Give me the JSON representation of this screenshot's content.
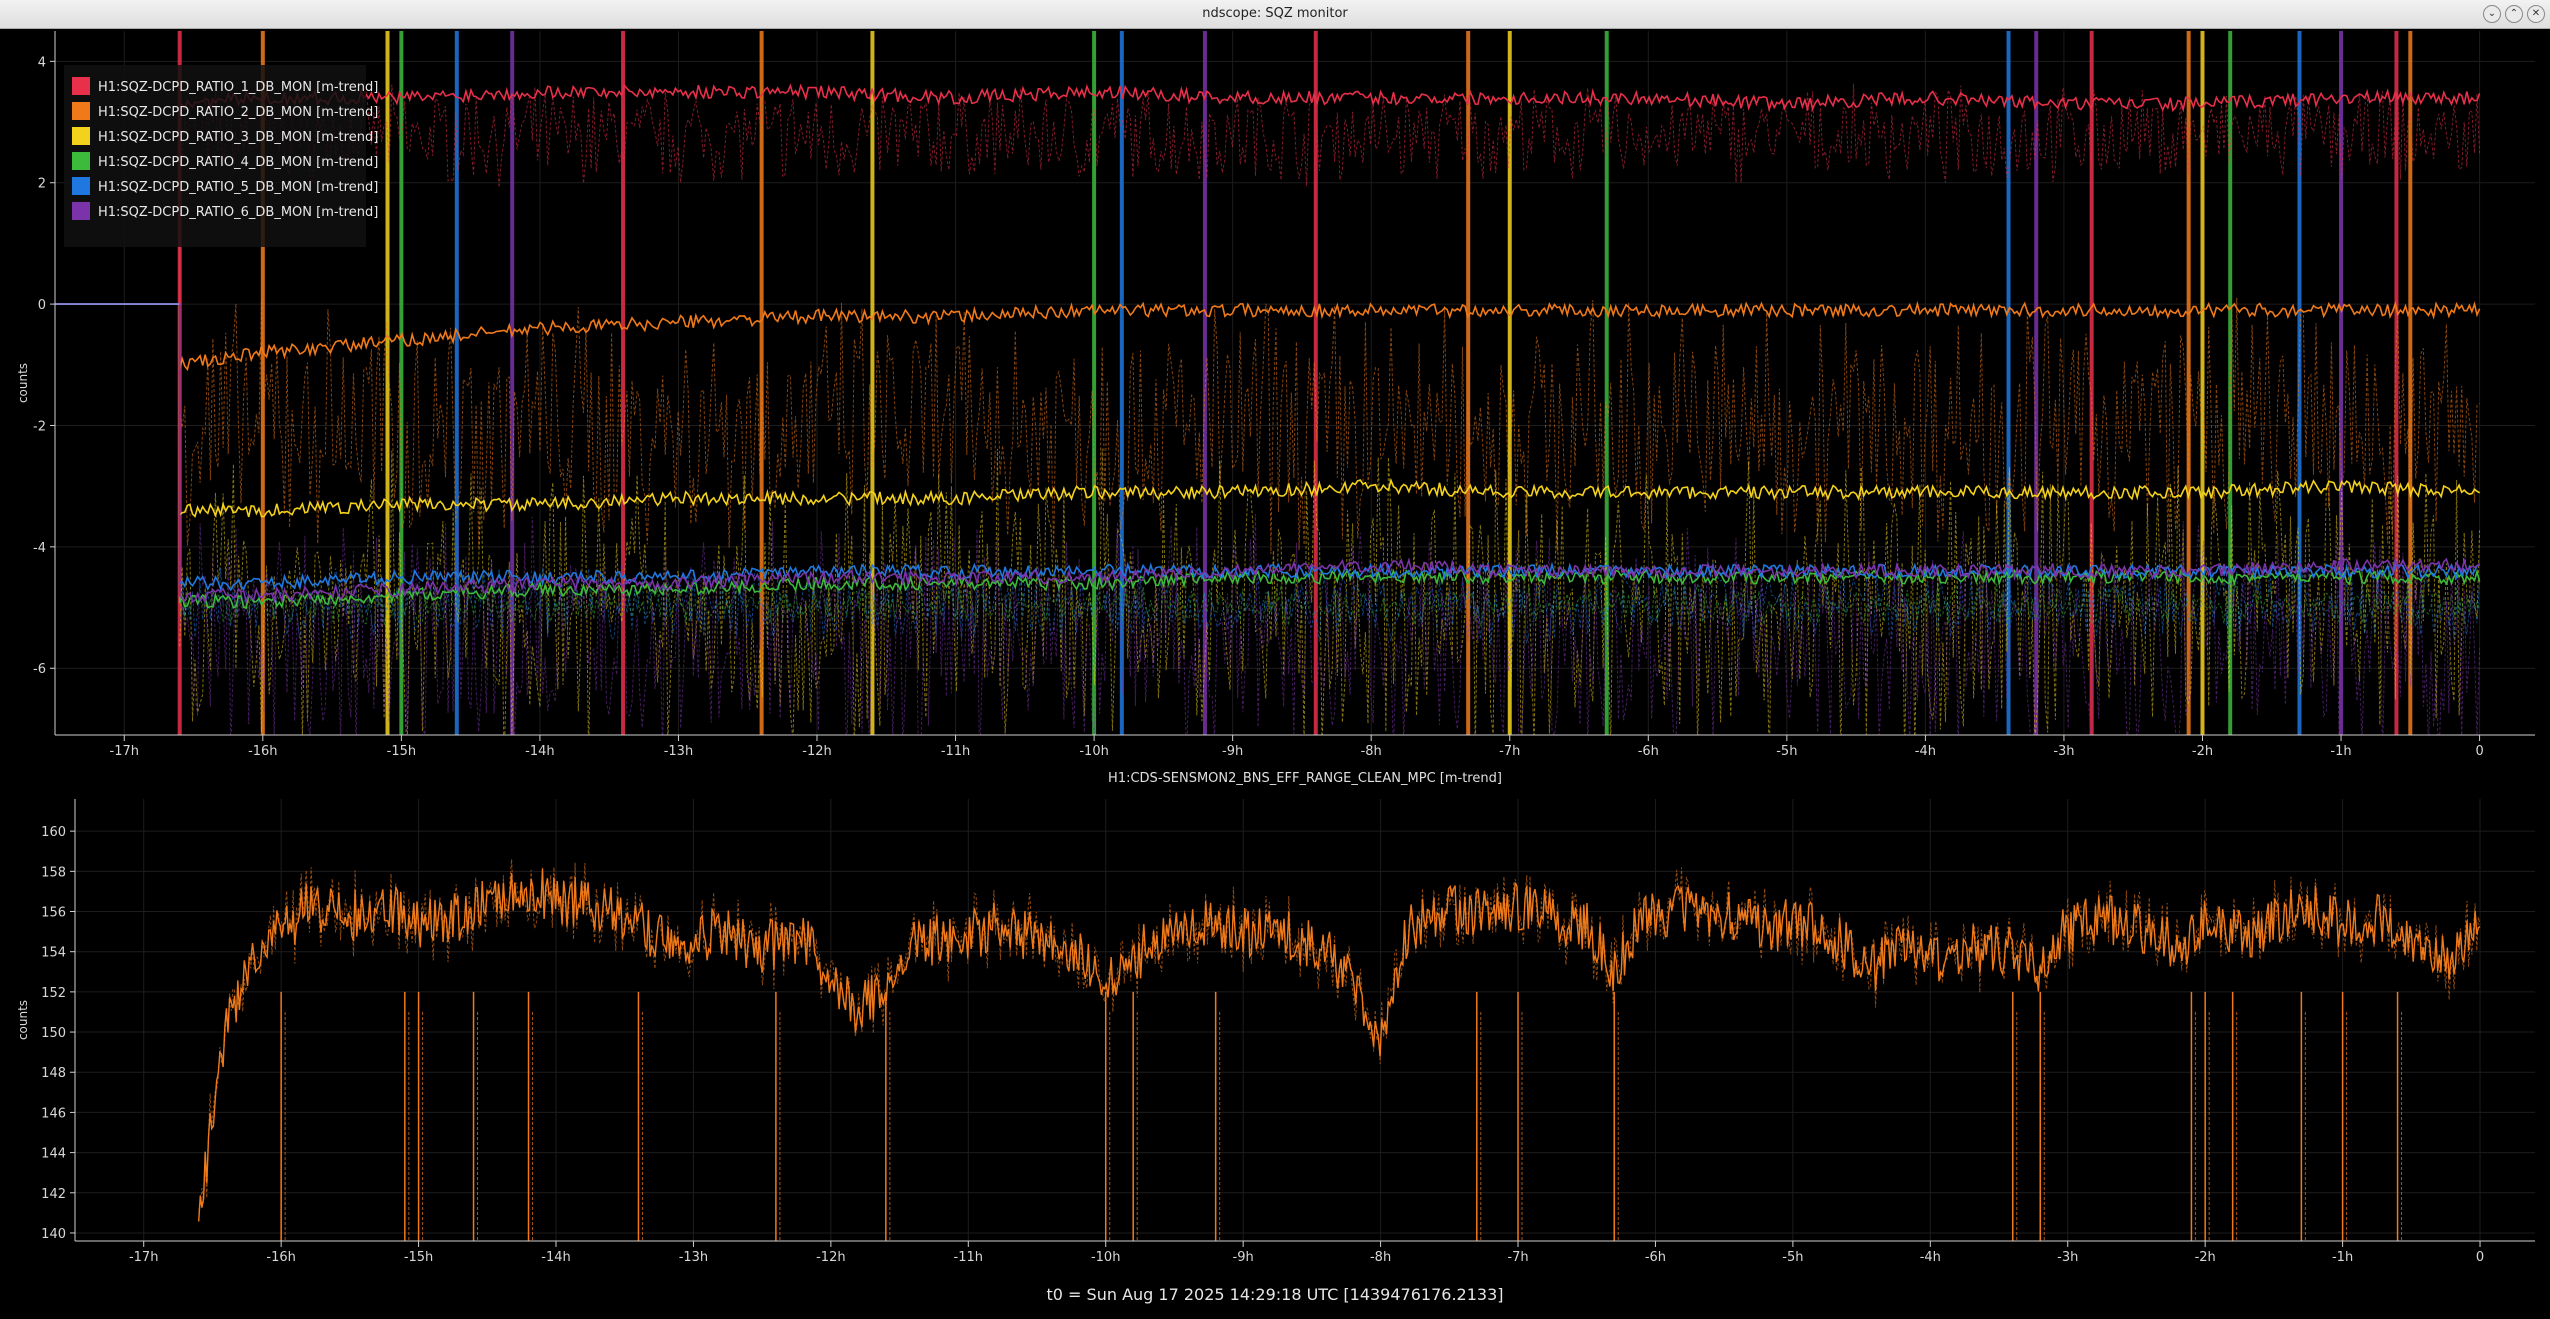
{
  "window": {
    "title": "ndscope: SQZ monitor",
    "buttons": [
      "minimize-icon",
      "maximize-icon",
      "close-icon"
    ]
  },
  "footer": {
    "t0_label": "t0 = Sun Aug 17 2025 14:29:18 UTC [1439476176.2133]"
  },
  "chart_data": [
    {
      "type": "line",
      "title": "",
      "ylabel": "counts",
      "xlabel": "",
      "x_unit": "hours relative to t0",
      "xlim": [
        -17.5,
        0.4
      ],
      "ylim": [
        -7.1,
        4.5
      ],
      "x_ticks": [
        -17,
        -16,
        -15,
        -14,
        -13,
        -12,
        -11,
        -10,
        -9,
        -8,
        -7,
        -6,
        -5,
        -4,
        -3,
        -2,
        -1,
        0
      ],
      "x_tick_labels": [
        "-17h",
        "-16h",
        "-15h",
        "-14h",
        "-13h",
        "-12h",
        "-11h",
        "-10h",
        "-9h",
        "-8h",
        "-7h",
        "-6h",
        "-5h",
        "-4h",
        "-3h",
        "-2h",
        "-1h",
        "0"
      ],
      "y_ticks": [
        -6,
        -4,
        -2,
        0,
        2,
        4
      ],
      "y_tick_labels": [
        "-6",
        "-4",
        "-2",
        "0",
        "2",
        "4"
      ],
      "grid": true,
      "legend_position": "top-left",
      "pre_data_flat_value": 0,
      "data_start": -16.6,
      "series": [
        {
          "name": "H1:SQZ-DCPD_RATIO_1_DB_MON [m-trend]",
          "color": "#e8304a",
          "x": [
            -16.6,
            -16,
            -15,
            -14,
            -13,
            -12,
            -11,
            -10,
            -9,
            -8,
            -7,
            -6,
            -5,
            -4,
            -3,
            -2,
            -1,
            0
          ],
          "mean": [
            3.3,
            3.4,
            3.4,
            3.5,
            3.5,
            3.5,
            3.4,
            3.5,
            3.4,
            3.4,
            3.4,
            3.4,
            3.3,
            3.4,
            3.3,
            3.3,
            3.4,
            3.4
          ],
          "band": [
            2.2,
            4.5
          ]
        },
        {
          "name": "H1:SQZ-DCPD_RATIO_2_DB_MON [m-trend]",
          "color": "#f07a1a",
          "x": [
            -16.6,
            -16,
            -15,
            -14,
            -13,
            -12,
            -11,
            -10,
            -9,
            -8,
            -7,
            -6,
            -5,
            -4,
            -3,
            -2,
            -1,
            0
          ],
          "mean": [
            -1.0,
            -0.8,
            -0.6,
            -0.4,
            -0.3,
            -0.2,
            -0.2,
            -0.1,
            -0.1,
            -0.1,
            -0.1,
            -0.1,
            -0.1,
            -0.1,
            -0.1,
            -0.1,
            -0.1,
            -0.1
          ],
          "band": [
            -3.5,
            2.5
          ]
        },
        {
          "name": "H1:SQZ-DCPD_RATIO_3_DB_MON [m-trend]",
          "color": "#f3d21c",
          "x": [
            -16.6,
            -16,
            -15,
            -14,
            -13,
            -12,
            -11,
            -10,
            -9,
            -8,
            -7,
            -6,
            -5,
            -4,
            -3,
            -2,
            -1,
            0
          ],
          "mean": [
            -3.4,
            -3.4,
            -3.3,
            -3.3,
            -3.2,
            -3.2,
            -3.2,
            -3.1,
            -3.1,
            -3.0,
            -3.1,
            -3.1,
            -3.1,
            -3.1,
            -3.1,
            -3.1,
            -3.0,
            -3.1
          ],
          "band": [
            -6.8,
            0.5
          ]
        },
        {
          "name": "H1:SQZ-DCPD_RATIO_4_DB_MON [m-trend]",
          "color": "#3cba3c",
          "x": [
            -16.6,
            -16,
            -15,
            -14,
            -13,
            -12,
            -11,
            -10,
            -9,
            -8,
            -7,
            -6,
            -5,
            -4,
            -3,
            -2,
            -1,
            0
          ],
          "mean": [
            -4.9,
            -4.9,
            -4.8,
            -4.7,
            -4.7,
            -4.6,
            -4.6,
            -4.6,
            -4.5,
            -4.5,
            -4.5,
            -4.5,
            -4.5,
            -4.5,
            -4.5,
            -4.5,
            -4.5,
            -4.5
          ],
          "band": [
            -5.2,
            -4.2
          ]
        },
        {
          "name": "H1:SQZ-DCPD_RATIO_5_DB_MON [m-trend]",
          "color": "#1f78e0",
          "x": [
            -16.6,
            -16,
            -15,
            -14,
            -13,
            -12,
            -11,
            -10,
            -9,
            -8,
            -7,
            -6,
            -5,
            -4,
            -3,
            -2,
            -1,
            0
          ],
          "mean": [
            -4.6,
            -4.6,
            -4.5,
            -4.5,
            -4.5,
            -4.4,
            -4.4,
            -4.4,
            -4.4,
            -4.4,
            -4.4,
            -4.4,
            -4.4,
            -4.4,
            -4.4,
            -4.4,
            -4.4,
            -4.4
          ],
          "band": [
            -5.4,
            -3.6
          ]
        },
        {
          "name": "H1:SQZ-DCPD_RATIO_6_DB_MON [m-trend]",
          "color": "#7a33a8",
          "x": [
            -16.6,
            -16,
            -15,
            -14,
            -13,
            -12,
            -11,
            -10,
            -9,
            -8,
            -7,
            -6,
            -5,
            -4,
            -3,
            -2,
            -1,
            0
          ],
          "mean": [
            -4.8,
            -4.8,
            -4.7,
            -4.6,
            -4.6,
            -4.5,
            -4.5,
            -4.5,
            -4.4,
            -4.3,
            -4.4,
            -4.4,
            -4.4,
            -4.4,
            -4.4,
            -4.4,
            -4.3,
            -4.3
          ],
          "band": [
            -7.0,
            -1.2
          ]
        }
      ],
      "glitch_times": [
        -16.6,
        -16.0,
        -15.1,
        -15.0,
        -14.6,
        -14.2,
        -13.4,
        -12.4,
        -11.6,
        -10.0,
        -9.8,
        -9.2,
        -8.4,
        -7.3,
        -7.0,
        -6.3,
        -3.4,
        -3.2,
        -2.8,
        -2.1,
        -2.0,
        -1.8,
        -1.3,
        -1.0,
        -0.6,
        -0.5
      ]
    },
    {
      "type": "line",
      "title": "H1:CDS-SENSMON2_BNS_EFF_RANGE_CLEAN_MPC [m-trend]",
      "ylabel": "counts",
      "xlabel": "",
      "x_unit": "hours relative to t0",
      "xlim": [
        -17.5,
        0.4
      ],
      "ylim": [
        139.6,
        161.6
      ],
      "x_ticks": [
        -17,
        -16,
        -15,
        -14,
        -13,
        -12,
        -11,
        -10,
        -9,
        -8,
        -7,
        -6,
        -5,
        -4,
        -3,
        -2,
        -1,
        0
      ],
      "x_tick_labels": [
        "-17h",
        "-16h",
        "-15h",
        "-14h",
        "-13h",
        "-12h",
        "-11h",
        "-10h",
        "-9h",
        "-8h",
        "-7h",
        "-6h",
        "-5h",
        "-4h",
        "-3h",
        "-2h",
        "-1h",
        "0"
      ],
      "y_ticks": [
        140,
        142,
        144,
        146,
        148,
        150,
        152,
        154,
        156,
        158,
        160
      ],
      "y_tick_labels": [
        "140",
        "142",
        "144",
        "146",
        "148",
        "150",
        "152",
        "154",
        "156",
        "158",
        "160"
      ],
      "grid": true,
      "series": [
        {
          "name": "H1:CDS-SENSMON2_BNS_EFF_RANGE_CLEAN_MPC [m-trend]",
          "color": "#f07a1a",
          "x": [
            -16.6,
            -16.4,
            -16.2,
            -16.0,
            -15.8,
            -15.5,
            -15.2,
            -15.0,
            -14.7,
            -14.4,
            -14.2,
            -14.0,
            -13.7,
            -13.4,
            -13.1,
            -12.8,
            -12.5,
            -12.2,
            -12.0,
            -11.8,
            -11.6,
            -11.4,
            -11.1,
            -10.8,
            -10.5,
            -10.2,
            -10.0,
            -9.8,
            -9.5,
            -9.2,
            -9.0,
            -8.7,
            -8.4,
            -8.2,
            -8.0,
            -7.8,
            -7.5,
            -7.2,
            -7.0,
            -6.7,
            -6.5,
            -6.3,
            -6.1,
            -5.8,
            -5.5,
            -5.2,
            -5.0,
            -4.7,
            -4.4,
            -4.2,
            -4.0,
            -3.7,
            -3.4,
            -3.2,
            -3.0,
            -2.7,
            -2.4,
            -2.2,
            -2.0,
            -1.7,
            -1.4,
            -1.2,
            -1.0,
            -0.7,
            -0.4,
            -0.2,
            0.0
          ],
          "values": [
            140.8,
            150.5,
            153.6,
            155.0,
            156.2,
            155.8,
            156.0,
            155.4,
            155.8,
            156.8,
            157.3,
            156.6,
            156.3,
            155.2,
            154.6,
            154.9,
            154.2,
            154.7,
            152.8,
            151.0,
            152.4,
            154.4,
            154.8,
            155.2,
            154.6,
            153.8,
            152.2,
            153.7,
            155.2,
            155.4,
            155.0,
            154.8,
            154.2,
            152.2,
            149.8,
            155.2,
            156.2,
            155.8,
            156.4,
            155.6,
            155.2,
            153.2,
            155.6,
            156.2,
            155.8,
            155.0,
            155.6,
            154.8,
            153.2,
            154.6,
            153.4,
            154.2,
            154.0,
            153.2,
            155.2,
            155.6,
            155.0,
            154.2,
            155.4,
            154.8,
            155.8,
            156.0,
            155.4,
            155.6,
            154.2,
            153.8,
            155.0
          ],
          "noise": 1.3
        },
        {
          "name": "min-max envelope",
          "color": "#f07a1a",
          "style": "dashed"
        }
      ],
      "dropouts": [
        -16.0,
        -15.1,
        -15.0,
        -14.6,
        -14.2,
        -13.4,
        -12.4,
        -11.6,
        -10.0,
        -9.8,
        -9.2,
        -7.3,
        -7.0,
        -6.3,
        -3.4,
        -3.2,
        -2.1,
        -2.0,
        -1.8,
        -1.3,
        -1.0,
        -0.6
      ]
    }
  ]
}
